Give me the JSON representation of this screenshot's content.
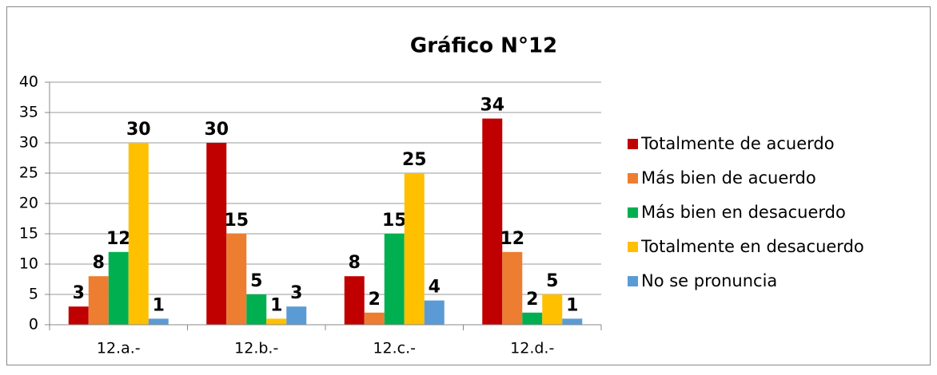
{
  "chart_data": {
    "type": "bar",
    "title": "Gráfico N°12",
    "categories": [
      "12.a.-",
      "12.b.-",
      "12.c.-",
      "12.d.-"
    ],
    "series": [
      {
        "name": "Totalmente de acuerdo",
        "color": "#c00000",
        "values": [
          3,
          30,
          8,
          34
        ]
      },
      {
        "name": "Más bien de acuerdo",
        "color": "#ed7d31",
        "values": [
          8,
          15,
          2,
          12
        ]
      },
      {
        "name": "Más bien en desacuerdo",
        "color": "#00b050",
        "values": [
          12,
          5,
          15,
          2
        ]
      },
      {
        "name": "Totalmente en desacuerdo",
        "color": "#ffc000",
        "values": [
          30,
          1,
          25,
          5
        ]
      },
      {
        "name": "No se pronuncia",
        "color": "#5b9bd5",
        "values": [
          1,
          3,
          4,
          1
        ]
      }
    ],
    "ylim": [
      0,
      40
    ],
    "yticks": [
      0,
      5,
      10,
      15,
      20,
      25,
      30,
      35,
      40
    ],
    "grid": true,
    "legend": "right"
  }
}
